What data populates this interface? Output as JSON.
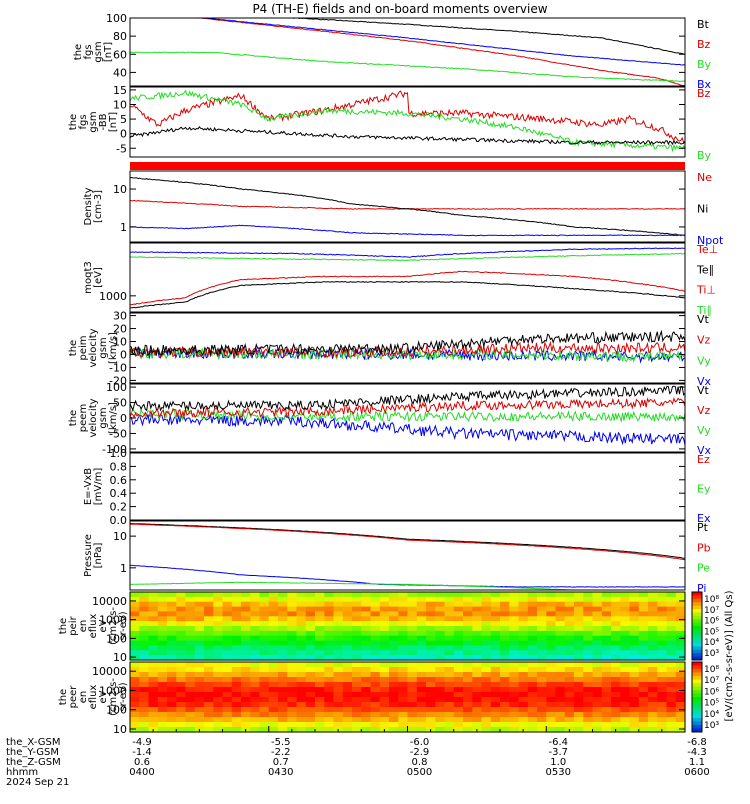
{
  "title": "P4 (TH-E) fields and on-board moments overview",
  "colors": {
    "black": "#000000",
    "red": "#dd0000",
    "green": "#22dd22",
    "blue": "#0000ee",
    "lime": "#22dd22"
  },
  "chart_data": [
    {
      "type": "line",
      "ylabel": [
        "the",
        "fgs",
        "gsm",
        "[nT]"
      ],
      "ylim": [
        25,
        100
      ],
      "yticks": [
        40,
        60,
        80,
        100
      ],
      "legend": [
        {
          "name": "Bt",
          "color": "#000000"
        },
        {
          "name": "Bz",
          "color": "#dd0000"
        },
        {
          "name": "By",
          "color": "#22dd22"
        },
        {
          "name": "Bx",
          "color": "#0000ee"
        }
      ],
      "series": [
        {
          "name": "Bt",
          "color": "#000000",
          "x": [
            0,
            0.3,
            0.5,
            0.7,
            0.85,
            0.95,
            1.0
          ],
          "y": [
            108,
            100,
            93,
            85,
            78,
            66,
            60
          ],
          "noise": 0.4
        },
        {
          "name": "Bz",
          "color": "#dd0000",
          "x": [
            0,
            0.28,
            0.5,
            0.7,
            0.85,
            0.95,
            1.0
          ],
          "y": [
            108,
            90,
            75,
            58,
            42,
            34,
            25
          ],
          "noise": 0.4
        },
        {
          "name": "By",
          "color": "#22dd22",
          "x": [
            0,
            0.15,
            0.35,
            0.6,
            0.8,
            1.0
          ],
          "y": [
            62,
            62,
            52,
            44,
            35,
            30
          ],
          "noise": 0.5
        },
        {
          "name": "Bx",
          "color": "#0000ee",
          "x": [
            0,
            0.3,
            0.5,
            0.8,
            1.0
          ],
          "y": [
            108,
            90,
            78,
            58,
            48
          ],
          "noise": 0.3
        }
      ]
    },
    {
      "type": "line",
      "ylabel": [
        "the",
        "fgs",
        "gsm",
        "-BB",
        "[nT]"
      ],
      "ylim": [
        -8,
        16
      ],
      "yticks": [
        -5,
        0,
        5,
        10,
        15
      ],
      "legend": [
        {
          "name": "Bz",
          "color": "#dd0000"
        },
        {
          "name": "By",
          "color": "#22dd22"
        }
      ],
      "series": [
        {
          "name": "Bz",
          "color": "#dd0000",
          "x": [
            0,
            0.05,
            0.1,
            0.2,
            0.25,
            0.35,
            0.5,
            0.5,
            0.6,
            0.75,
            0.85,
            0.9,
            0.95,
            1.0
          ],
          "y": [
            10,
            3,
            8,
            13,
            5,
            8,
            14,
            7,
            7,
            5,
            3,
            5,
            2,
            -3
          ],
          "noise": 1.2
        },
        {
          "name": "By",
          "color": "#22dd22",
          "x": [
            0,
            0.1,
            0.2,
            0.25,
            0.35,
            0.5,
            0.6,
            0.7,
            0.8,
            0.9,
            1.0
          ],
          "y": [
            12,
            14,
            10,
            5,
            8,
            7,
            5,
            2,
            -3,
            -4,
            -5
          ],
          "noise": 1.0
        },
        {
          "name": "Bt",
          "color": "#000000",
          "x": [
            0,
            0.1,
            0.2,
            0.4,
            0.6,
            0.8,
            1.0
          ],
          "y": [
            -1,
            2,
            1,
            -1,
            -2,
            -3,
            -3
          ],
          "noise": 0.6
        }
      ]
    },
    {
      "type": "line",
      "ylabel": [
        "Density",
        "[cm-3]"
      ],
      "ylim": [
        0.4,
        30
      ],
      "log": true,
      "yticks": [
        1,
        10
      ],
      "legend": [
        {
          "name": "Ne",
          "color": "#dd0000"
        },
        {
          "name": "Ni",
          "color": "#000000"
        },
        {
          "name": "Npot",
          "color": "#0000ee"
        }
      ],
      "series": [
        {
          "name": "Ne",
          "color": "#dd0000",
          "x": [
            0,
            0.2,
            0.4,
            0.6,
            1.0
          ],
          "y": [
            5,
            3.5,
            3,
            3,
            3
          ],
          "noise": 0.01
        },
        {
          "name": "Ni",
          "color": "#000000",
          "x": [
            0,
            0.2,
            0.4,
            0.6,
            0.8,
            1.0
          ],
          "y": [
            20,
            10,
            4,
            2,
            1,
            0.6
          ],
          "noise": 0.01
        },
        {
          "name": "Npot",
          "color": "#0000ee",
          "x": [
            0,
            0.1,
            0.2,
            0.4,
            0.6,
            1.0
          ],
          "y": [
            1,
            0.9,
            1.1,
            0.7,
            0.6,
            0.6
          ],
          "noise": 0.01
        }
      ]
    },
    {
      "type": "line",
      "ylabel": [
        "moqt3",
        "[eV]"
      ],
      "ylim": [
        400,
        20000
      ],
      "log": true,
      "yticks": [
        1000
      ],
      "legend": [
        {
          "name": "Te⊥",
          "color": "#dd0000"
        },
        {
          "name": "Te∥",
          "color": "#000000"
        },
        {
          "name": "Ti⊥",
          "color": "#dd0000"
        },
        {
          "name": "Ti∥",
          "color": "#22dd22"
        }
      ],
      "series": [
        {
          "name": "Ti⊥",
          "color": "#0000ee",
          "x": [
            0,
            0.3,
            0.5,
            0.6,
            0.8,
            1.0
          ],
          "y": [
            12000,
            11000,
            9000,
            11000,
            14000,
            15000
          ],
          "noise": 0.01
        },
        {
          "name": "Ti∥",
          "color": "#22dd22",
          "x": [
            0,
            0.3,
            0.5,
            0.7,
            1.0
          ],
          "y": [
            9000,
            8000,
            7500,
            9000,
            11000
          ],
          "noise": 0.01
        },
        {
          "name": "Te⊥",
          "color": "#dd0000",
          "x": [
            0,
            0.1,
            0.2,
            0.35,
            0.5,
            0.6,
            0.8,
            1.0
          ],
          "y": [
            600,
            900,
            2500,
            3000,
            3000,
            4000,
            3000,
            1300
          ],
          "noise": 0.01
        },
        {
          "name": "Te∥",
          "color": "#000000",
          "x": [
            0,
            0.1,
            0.2,
            0.35,
            0.5,
            0.6,
            0.8,
            1.0
          ],
          "y": [
            500,
            700,
            1800,
            2200,
            2200,
            2200,
            1500,
            900
          ],
          "noise": 0.01
        }
      ]
    },
    {
      "type": "line",
      "ylabel": [
        "the",
        "peim",
        "velocity",
        "gsm",
        "[km/s]"
      ],
      "ylim": [
        -22,
        32
      ],
      "yticks": [
        -20,
        -10,
        0,
        10,
        20,
        30
      ],
      "legend": [
        {
          "name": "Vt",
          "color": "#000000"
        },
        {
          "name": "Vz",
          "color": "#dd0000"
        },
        {
          "name": "Vy",
          "color": "#22dd22"
        },
        {
          "name": "Vx",
          "color": "#0000ee"
        }
      ],
      "series": [
        {
          "name": "Vx",
          "color": "#0000ee",
          "x": [
            0,
            0.5,
            0.7,
            1.0
          ],
          "y": [
            1,
            0,
            -1,
            -2
          ],
          "noise": 4
        },
        {
          "name": "Vy",
          "color": "#22dd22",
          "x": [
            0,
            0.5,
            0.7,
            1.0
          ],
          "y": [
            1,
            0,
            0,
            -2
          ],
          "noise": 4
        },
        {
          "name": "Vz",
          "color": "#dd0000",
          "x": [
            0,
            0.5,
            0.7,
            1.0
          ],
          "y": [
            2,
            2,
            5,
            5
          ],
          "noise": 4
        },
        {
          "name": "Vt",
          "color": "#000000",
          "x": [
            0,
            0.5,
            0.7,
            1.0
          ],
          "y": [
            3,
            5,
            12,
            14
          ],
          "noise": 4
        }
      ]
    },
    {
      "type": "line",
      "ylabel": [
        "the",
        "peem",
        "velocity",
        "gsm",
        "[km/s]"
      ],
      "ylim": [
        -110,
        110
      ],
      "yticks": [
        -100,
        -50,
        0,
        50,
        100
      ],
      "legend": [
        {
          "name": "Vt",
          "color": "#000000"
        },
        {
          "name": "Vz",
          "color": "#dd0000"
        },
        {
          "name": "Vy",
          "color": "#22dd22"
        },
        {
          "name": "Vx",
          "color": "#0000ee"
        }
      ],
      "series": [
        {
          "name": "Vx",
          "color": "#0000ee",
          "x": [
            0,
            0.3,
            0.6,
            1.0
          ],
          "y": [
            -5,
            -10,
            -50,
            -70
          ],
          "noise": 18
        },
        {
          "name": "Vy",
          "color": "#22dd22",
          "x": [
            0,
            0.3,
            0.6,
            1.0
          ],
          "y": [
            15,
            5,
            5,
            5
          ],
          "noise": 15
        },
        {
          "name": "Vz",
          "color": "#dd0000",
          "x": [
            0,
            0.3,
            0.6,
            1.0
          ],
          "y": [
            15,
            20,
            40,
            50
          ],
          "noise": 15
        },
        {
          "name": "Vt",
          "color": "#000000",
          "x": [
            0,
            0.3,
            0.6,
            1.0
          ],
          "y": [
            40,
            40,
            70,
            90
          ],
          "noise": 15
        }
      ]
    },
    {
      "type": "line",
      "ylabel": [
        "E=-VxB",
        "[mV/m]"
      ],
      "ylim": [
        0,
        1
      ],
      "yticks": [
        0.0,
        0.2,
        0.4,
        0.6,
        0.8,
        1.0
      ],
      "legend": [
        {
          "name": "Ez",
          "color": "#dd0000"
        },
        {
          "name": "Ey",
          "color": "#22dd22"
        },
        {
          "name": "Ex",
          "color": "#0000ee"
        }
      ],
      "series": []
    },
    {
      "type": "line",
      "ylabel": [
        "Pressure",
        "[nPa]"
      ],
      "ylim": [
        0.2,
        30
      ],
      "log": true,
      "yticks": [
        1,
        10
      ],
      "legend": [
        {
          "name": "Pt",
          "color": "#000000"
        },
        {
          "name": "Pb",
          "color": "#dd0000"
        },
        {
          "name": "Pe",
          "color": "#22dd22"
        },
        {
          "name": "Pi",
          "color": "#0000ee"
        }
      ],
      "series": [
        {
          "name": "Pt",
          "color": "#000000",
          "x": [
            0,
            0.5,
            1.0
          ],
          "y": [
            25,
            8,
            2
          ],
          "noise": 0.004
        },
        {
          "name": "Pb",
          "color": "#dd0000",
          "x": [
            0,
            0.5,
            1.0
          ],
          "y": [
            24,
            7.5,
            1.8
          ],
          "noise": 0.004
        },
        {
          "name": "Pi",
          "color": "#0000ee",
          "x": [
            0,
            0.2,
            0.45,
            0.7,
            1.0
          ],
          "y": [
            1.2,
            0.6,
            0.3,
            0.25,
            0.25
          ],
          "noise": 0.005
        },
        {
          "name": "Pe",
          "color": "#22dd22",
          "x": [
            0,
            0.2,
            0.5,
            0.8,
            1.0
          ],
          "y": [
            0.3,
            0.35,
            0.3,
            0.2,
            0.15
          ],
          "noise": 0.004
        }
      ]
    },
    {
      "type": "heatmap",
      "ylabel": [
        "the",
        "peir",
        "en",
        "eflux",
        "eV",
        "(cm2-s-",
        "sr-eV)"
      ],
      "ylim": [
        7,
        30000
      ],
      "log": true,
      "yticks": [
        10,
        100,
        1000,
        10000
      ],
      "zlabel": "[eV/(cm2-s-sr-eV)] (All Qs)",
      "zticks": [
        "10⁸",
        "10⁷",
        "10⁶",
        "10⁵",
        "10⁴",
        "10³"
      ]
    },
    {
      "type": "heatmap",
      "ylabel": [
        "the",
        "peer",
        "en",
        "eflux",
        "eV",
        "(cm2-s-",
        "sr-eV)"
      ],
      "ylim": [
        7,
        30000
      ],
      "log": true,
      "yticks": [
        10,
        100,
        1000,
        10000
      ],
      "zlabel": "",
      "zticks": [
        "10⁸",
        "10⁷",
        "10⁶",
        "10⁵",
        "10⁴",
        "10³"
      ]
    }
  ],
  "xaxis": {
    "rows": [
      {
        "label": "the_X-GSM",
        "values": [
          "-4.9",
          "-5.5",
          "-6.0",
          "-6.4",
          "-6.8"
        ]
      },
      {
        "label": "the_Y-GSM",
        "values": [
          "-1.4",
          "-2.2",
          "-2.9",
          "-3.7",
          "-4.3"
        ]
      },
      {
        "label": "the_Z-GSM",
        "values": [
          "0.6",
          "0.7",
          "0.8",
          "1.0",
          "1.1"
        ]
      },
      {
        "label": "hhmm",
        "values": [
          "0400",
          "0430",
          "0500",
          "0530",
          "0600"
        ]
      }
    ],
    "date": "2024 Sep 21"
  }
}
